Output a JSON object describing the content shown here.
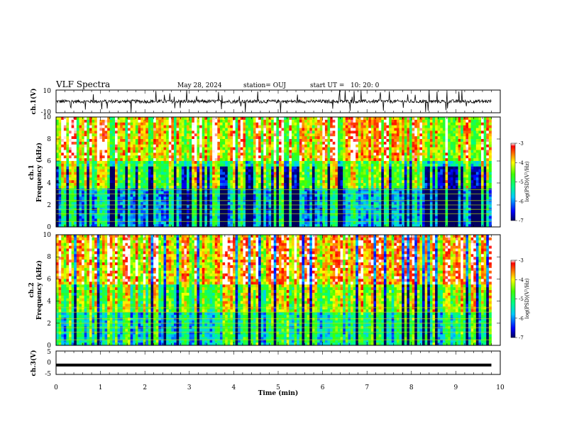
{
  "header": {
    "title": "VLF Spectra",
    "date": "May 28, 2024",
    "station": "station= OUJ",
    "start": "start UT =   10: 20: 0"
  },
  "colors": {
    "scale": [
      "#00006e",
      "#0000ff",
      "#00bfff",
      "#00ffaa",
      "#33ff00",
      "#ffff00",
      "#ff9900",
      "#ff0000",
      "#ffffff"
    ]
  },
  "chart_data": [
    {
      "type": "line",
      "panel": "ch1-waveform",
      "ylabel": "ch.1(V)",
      "ylim": [
        -10,
        10
      ],
      "yticks": [
        "10",
        "-10"
      ],
      "xlim": [
        0,
        10
      ],
      "description_values": {
        "baseline": 0,
        "typical_range": [
          -3,
          3
        ]
      }
    },
    {
      "type": "heatmap",
      "panel": "ch1-spectrogram",
      "ylabel": "ch.1\nFrequency (kHz)",
      "ylabel_lines": [
        "ch.1",
        "Frequency (kHz)"
      ],
      "ylim": [
        0,
        10
      ],
      "yticks": [
        "0",
        "2",
        "4",
        "6",
        "8",
        "10"
      ],
      "xlim": [
        0,
        10
      ],
      "data_end_min": 9.8,
      "colorbar": {
        "label": "log(PSD)(V²/Hz)",
        "range": [
          -7,
          -3
        ],
        "ticks": [
          "-3",
          "-4",
          "-5",
          "-6",
          "-7"
        ]
      }
    },
    {
      "type": "heatmap",
      "panel": "ch2-spectrogram",
      "ylabel_lines": [
        "ch.2",
        "Frequency (kHz)"
      ],
      "ylim": [
        0,
        10
      ],
      "yticks": [
        "0",
        "2",
        "4",
        "6",
        "8",
        "10"
      ],
      "xlim": [
        0,
        10
      ],
      "data_end_min": 9.8,
      "colorbar": {
        "label": "log(PSD)(V²/Hz)",
        "range": [
          -7,
          -3
        ],
        "ticks": [
          "-3",
          "-4",
          "-5",
          "-6",
          "-7"
        ]
      }
    },
    {
      "type": "line",
      "panel": "ch3-waveform",
      "ylabel": "ch.3(V)",
      "ylim": [
        -5,
        5
      ],
      "yticks": [
        "5",
        "0",
        "-5"
      ],
      "xlim": [
        0,
        10
      ],
      "values": {
        "x": [
          0,
          9.8
        ],
        "y": [
          -1,
          -1
        ]
      }
    }
  ],
  "xaxis": {
    "label": "Time (min)",
    "ticks": [
      "0",
      "1",
      "2",
      "3",
      "4",
      "5",
      "6",
      "7",
      "8",
      "9",
      "10"
    ]
  }
}
